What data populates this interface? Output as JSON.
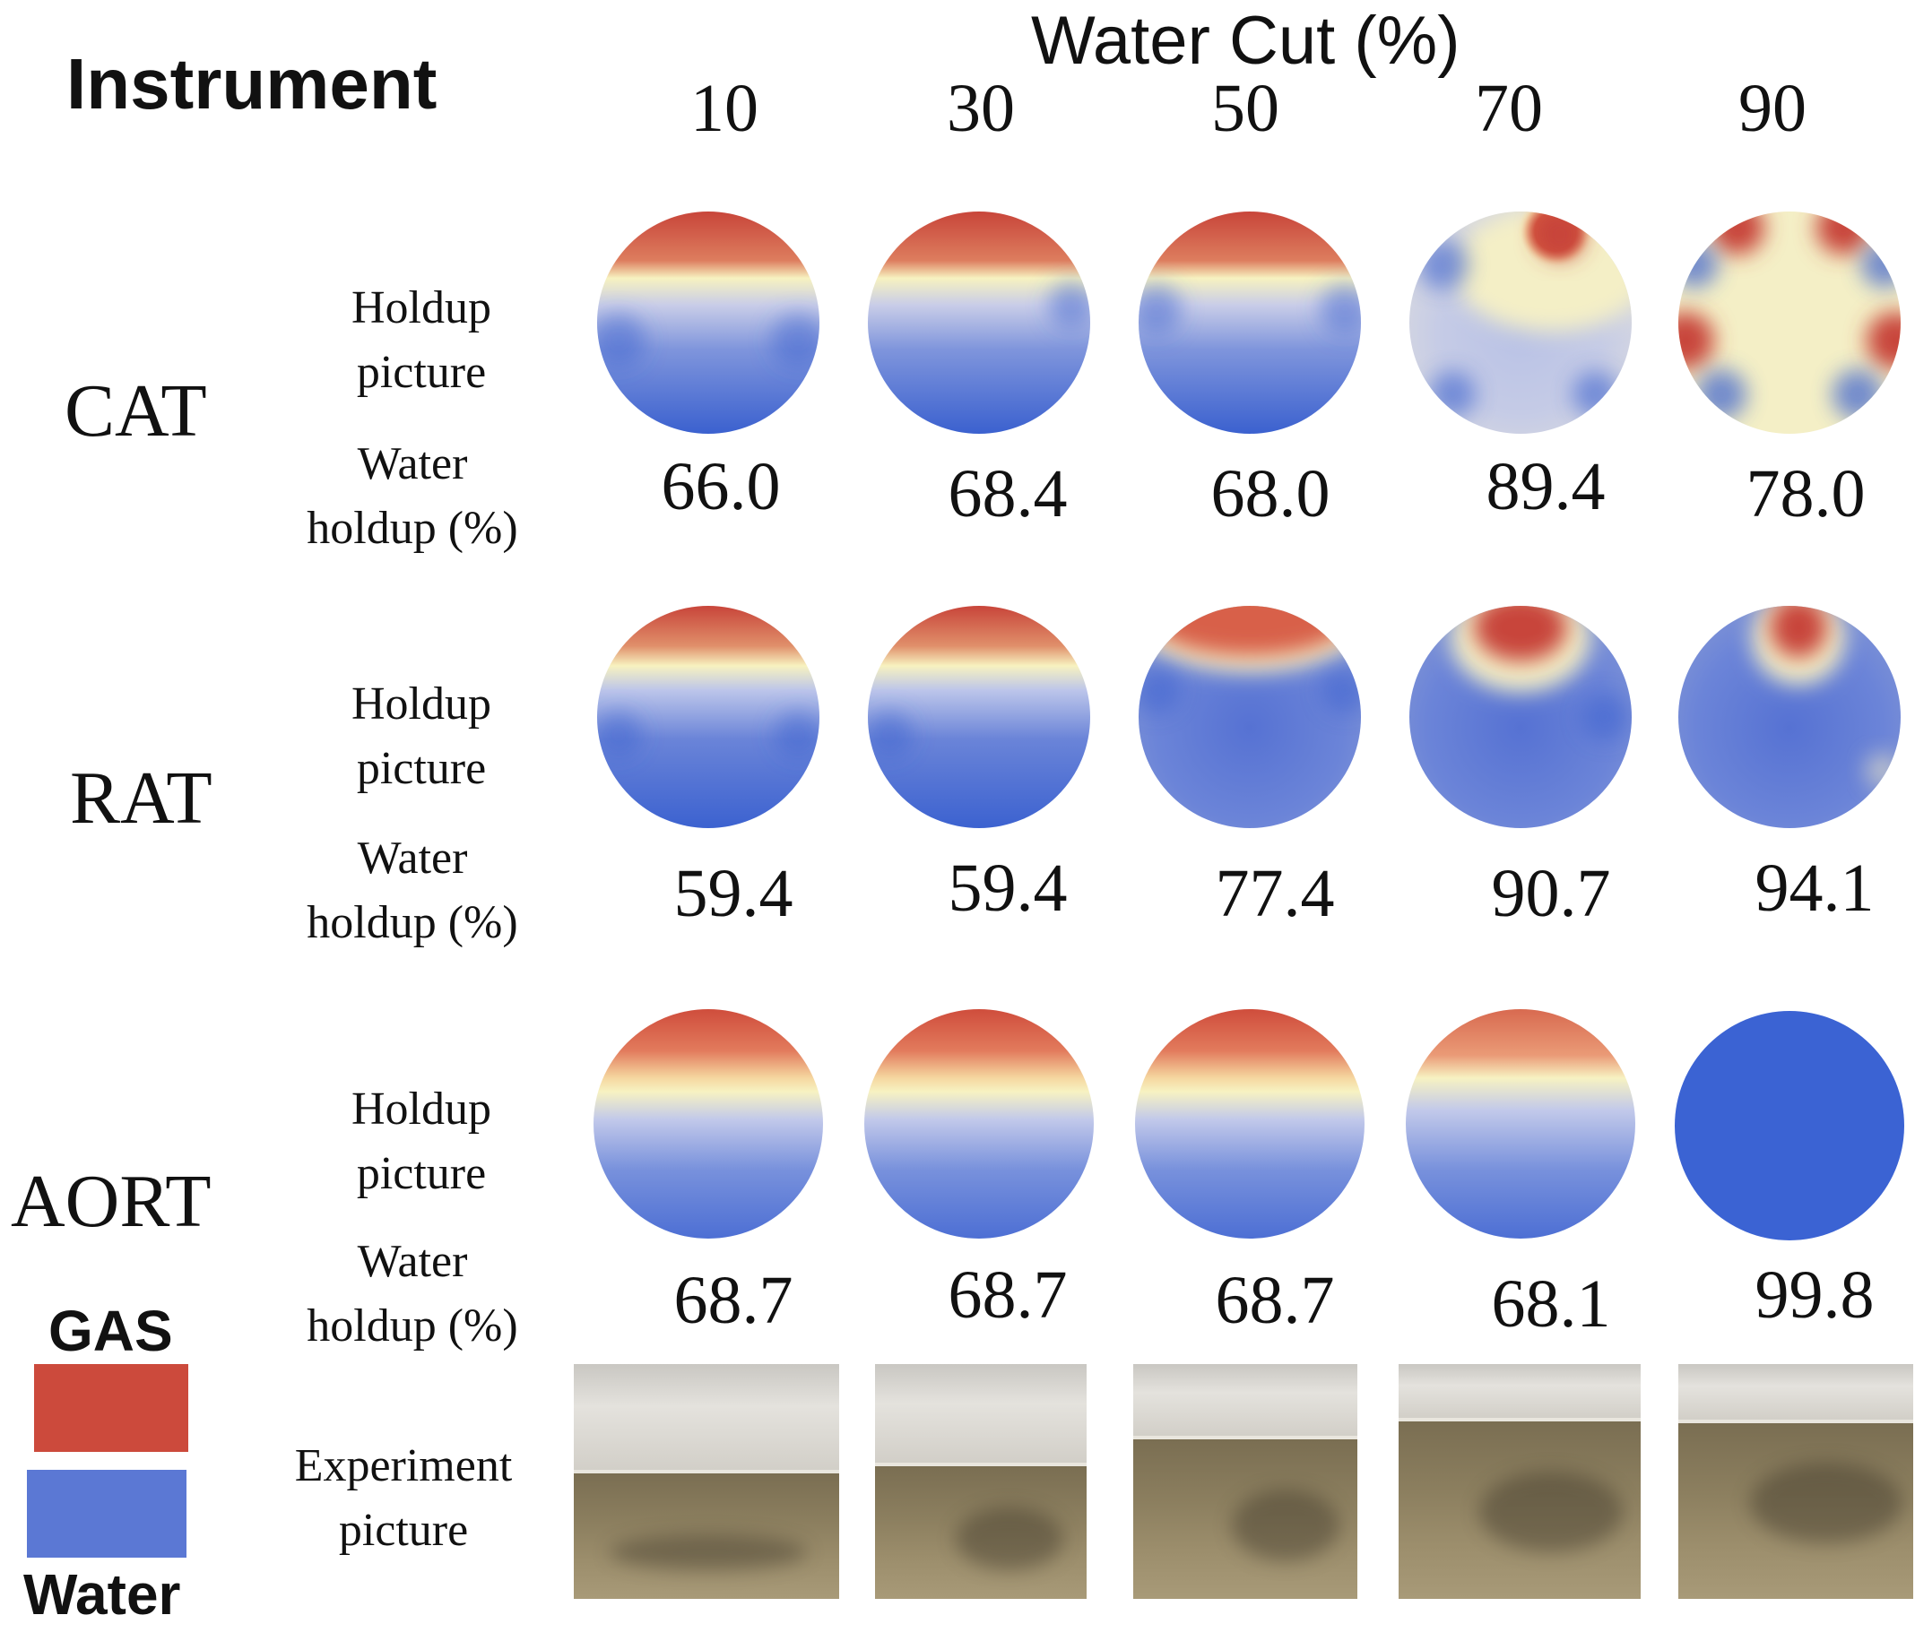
{
  "header": {
    "instrument_label": "Instrument",
    "water_cut_label": "Water Cut (%)",
    "water_cuts": [
      "10",
      "30",
      "50",
      "70",
      "90"
    ]
  },
  "row_labels": {
    "holdup_line1": "Holdup",
    "holdup_line2": "picture",
    "water_line1": "Water",
    "water_line2": "holdup (%)",
    "experiment_line1": "Experiment",
    "experiment_line2": "picture"
  },
  "instruments": [
    {
      "name": "CAT",
      "holdup": [
        "66.0",
        "68.4",
        "68.0",
        "89.4",
        "78.0"
      ]
    },
    {
      "name": "RAT",
      "holdup": [
        "59.4",
        "59.4",
        "77.4",
        "90.7",
        "94.1"
      ]
    },
    {
      "name": "AORT",
      "holdup": [
        "68.7",
        "68.7",
        "68.7",
        "68.1",
        "99.8"
      ]
    }
  ],
  "legend": {
    "gas_label": "GAS",
    "water_label": "Water",
    "gas_color": "#cc4a3c",
    "water_color": "#5b78d4"
  },
  "colors": {
    "gas_red": "#c8453a",
    "interface_yellow": "#f7f2c0",
    "water_blue": "#3d63cf"
  }
}
